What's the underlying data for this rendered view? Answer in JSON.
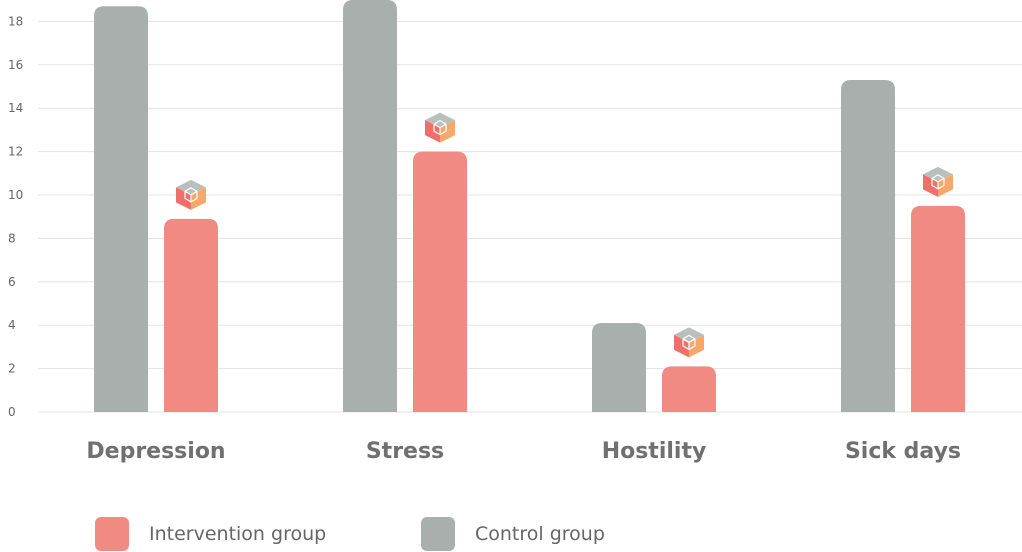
{
  "chart_data": {
    "type": "bar",
    "categories": [
      "Depression",
      "Stress",
      "Hostility",
      "Sick days"
    ],
    "series": [
      {
        "name": "Control group",
        "color": "#a8afad",
        "values": [
          18.7,
          19.0,
          4.1,
          15.3
        ]
      },
      {
        "name": "Intervention group",
        "color": "#f08a82",
        "values": [
          8.9,
          12.0,
          2.1,
          9.5
        ]
      }
    ],
    "ylim": [
      0,
      18
    ],
    "yticks": [
      0,
      2,
      4,
      6,
      8,
      10,
      12,
      14,
      16,
      18
    ],
    "grid": true,
    "marker_icon": "cube-icon",
    "legend_position": "bottom-left"
  },
  "legend": {
    "items": [
      {
        "label": "Intervention group",
        "color": "#f08a82"
      },
      {
        "label": "Control group",
        "color": "#a8afad"
      }
    ]
  }
}
